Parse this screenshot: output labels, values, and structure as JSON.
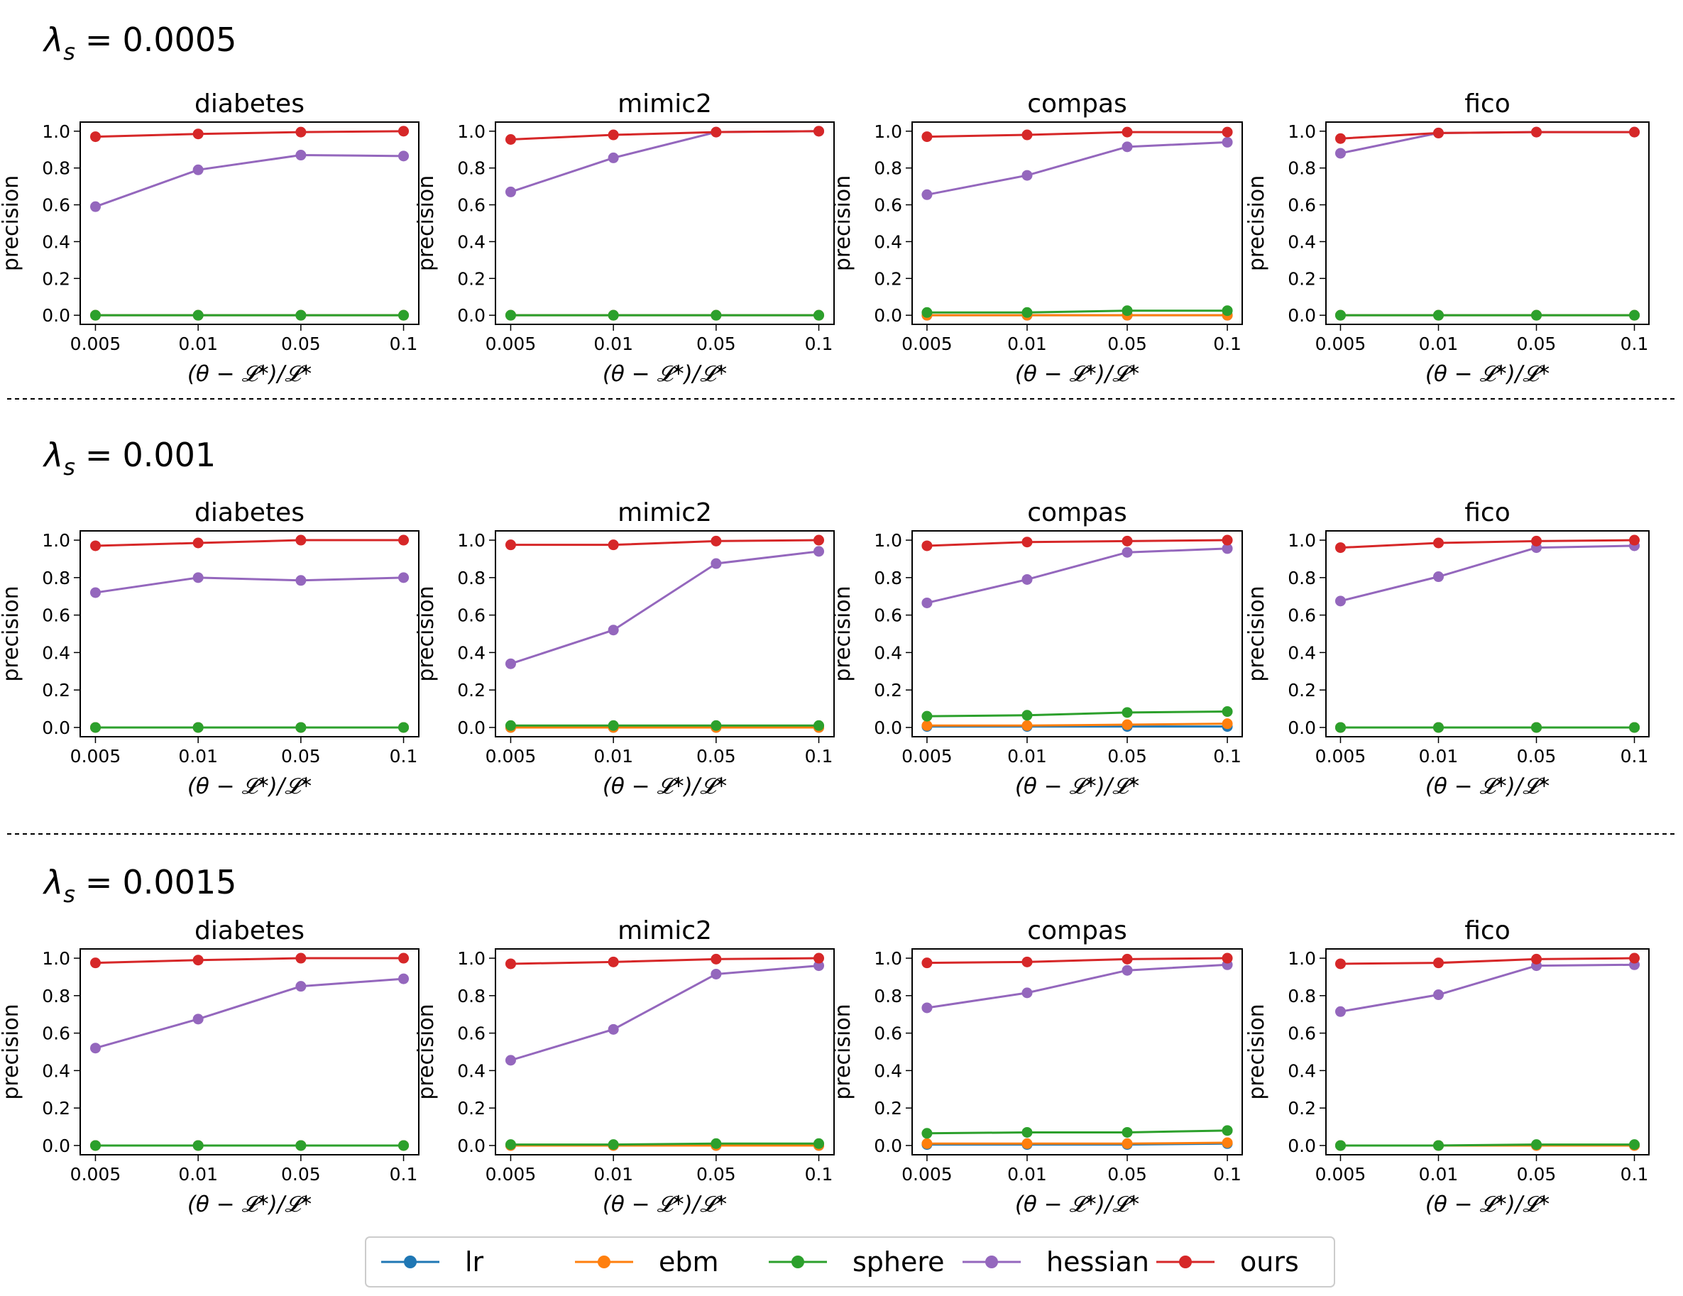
{
  "figure": {
    "xlabel": "(θ − 𝓛*)/𝓛*",
    "ylabel": "precision",
    "lambda_symbol": "λ",
    "lambda_sub": "s",
    "lambda_eq": "=",
    "rows": [
      {
        "lambda_value": "0.0005"
      },
      {
        "lambda_value": "0.001"
      },
      {
        "lambda_value": "0.0015"
      }
    ]
  },
  "legend": {
    "entries": [
      {
        "name": "lr",
        "color": "#1f77b4"
      },
      {
        "name": "ebm",
        "color": "#ff7f0e"
      },
      {
        "name": "sphere",
        "color": "#2ca02c"
      },
      {
        "name": "hessian",
        "color": "#9467bd"
      },
      {
        "name": "ours",
        "color": "#d62728"
      }
    ]
  },
  "chart_data": [
    {
      "type": "line",
      "title": "diabetes",
      "row": 0,
      "col": 0,
      "categories": [
        "0.005",
        "0.01",
        "0.05",
        "0.1"
      ],
      "xlabel": "(θ − 𝓛*)/𝓛*",
      "ylabel": "precision",
      "ylim": [
        0,
        1.0
      ],
      "yticks": [
        "0.0",
        "0.2",
        "0.4",
        "0.6",
        "0.8",
        "1.0"
      ],
      "series": [
        {
          "name": "lr",
          "values": [
            0.0,
            0.0,
            0.0,
            0.0
          ]
        },
        {
          "name": "ebm",
          "values": [
            0.0,
            0.0,
            0.0,
            0.0
          ]
        },
        {
          "name": "sphere",
          "values": [
            0.0,
            0.0,
            0.0,
            0.0
          ]
        },
        {
          "name": "hessian",
          "values": [
            0.59,
            0.79,
            0.87,
            0.865
          ]
        },
        {
          "name": "ours",
          "values": [
            0.97,
            0.985,
            0.995,
            1.0
          ]
        }
      ]
    },
    {
      "type": "line",
      "title": "mimic2",
      "row": 0,
      "col": 1,
      "categories": [
        "0.005",
        "0.01",
        "0.05",
        "0.1"
      ],
      "xlabel": "(θ − 𝓛*)/𝓛*",
      "ylabel": "precision",
      "ylim": [
        0,
        1.0
      ],
      "yticks": [
        "0.0",
        "0.2",
        "0.4",
        "0.6",
        "0.8",
        "1.0"
      ],
      "series": [
        {
          "name": "lr",
          "values": [
            0.0,
            0.0,
            0.0,
            0.0
          ]
        },
        {
          "name": "ebm",
          "values": [
            0.0,
            0.0,
            0.0,
            0.0
          ]
        },
        {
          "name": "sphere",
          "values": [
            0.0,
            0.0,
            0.0,
            0.0
          ]
        },
        {
          "name": "hessian",
          "values": [
            0.67,
            0.855,
            0.995,
            1.0
          ]
        },
        {
          "name": "ours",
          "values": [
            0.955,
            0.98,
            0.995,
            1.0
          ]
        }
      ]
    },
    {
      "type": "line",
      "title": "compas",
      "row": 0,
      "col": 2,
      "categories": [
        "0.005",
        "0.01",
        "0.05",
        "0.1"
      ],
      "xlabel": "(θ − 𝓛*)/𝓛*",
      "ylabel": "precision",
      "ylim": [
        0,
        1.0
      ],
      "yticks": [
        "0.0",
        "0.2",
        "0.4",
        "0.6",
        "0.8",
        "1.0"
      ],
      "series": [
        {
          "name": "lr",
          "values": [
            0.0,
            0.0,
            0.0,
            0.0
          ]
        },
        {
          "name": "ebm",
          "values": [
            0.0,
            0.0,
            0.0,
            0.0
          ]
        },
        {
          "name": "sphere",
          "values": [
            0.015,
            0.015,
            0.025,
            0.025
          ]
        },
        {
          "name": "hessian",
          "values": [
            0.655,
            0.76,
            0.915,
            0.94
          ]
        },
        {
          "name": "ours",
          "values": [
            0.97,
            0.98,
            0.995,
            0.995
          ]
        }
      ]
    },
    {
      "type": "line",
      "title": "fico",
      "row": 0,
      "col": 3,
      "categories": [
        "0.005",
        "0.01",
        "0.05",
        "0.1"
      ],
      "xlabel": "(θ − 𝓛*)/𝓛*",
      "ylabel": "precision",
      "ylim": [
        0,
        1.0
      ],
      "yticks": [
        "0.0",
        "0.2",
        "0.4",
        "0.6",
        "0.8",
        "1.0"
      ],
      "series": [
        {
          "name": "lr",
          "values": [
            0.0,
            0.0,
            0.0,
            0.0
          ]
        },
        {
          "name": "ebm",
          "values": [
            0.0,
            0.0,
            0.0,
            0.0
          ]
        },
        {
          "name": "sphere",
          "values": [
            0.0,
            0.0,
            0.0,
            0.0
          ]
        },
        {
          "name": "hessian",
          "values": [
            0.88,
            0.99,
            0.995,
            0.995
          ]
        },
        {
          "name": "ours",
          "values": [
            0.96,
            0.99,
            0.995,
            0.995
          ]
        }
      ]
    },
    {
      "type": "line",
      "title": "diabetes",
      "row": 1,
      "col": 0,
      "categories": [
        "0.005",
        "0.01",
        "0.05",
        "0.1"
      ],
      "xlabel": "(θ − 𝓛*)/𝓛*",
      "ylabel": "precision",
      "ylim": [
        0,
        1.0
      ],
      "yticks": [
        "0.0",
        "0.2",
        "0.4",
        "0.6",
        "0.8",
        "1.0"
      ],
      "series": [
        {
          "name": "lr",
          "values": [
            0.0,
            0.0,
            0.0,
            0.0
          ]
        },
        {
          "name": "ebm",
          "values": [
            0.0,
            0.0,
            0.0,
            0.0
          ]
        },
        {
          "name": "sphere",
          "values": [
            0.0,
            0.0,
            0.0,
            0.0
          ]
        },
        {
          "name": "hessian",
          "values": [
            0.72,
            0.8,
            0.785,
            0.8
          ]
        },
        {
          "name": "ours",
          "values": [
            0.97,
            0.985,
            1.0,
            1.0
          ]
        }
      ]
    },
    {
      "type": "line",
      "title": "mimic2",
      "row": 1,
      "col": 1,
      "categories": [
        "0.005",
        "0.01",
        "0.05",
        "0.1"
      ],
      "xlabel": "(θ − 𝓛*)/𝓛*",
      "ylabel": "precision",
      "ylim": [
        0,
        1.0
      ],
      "yticks": [
        "0.0",
        "0.2",
        "0.4",
        "0.6",
        "0.8",
        "1.0"
      ],
      "series": [
        {
          "name": "lr",
          "values": [
            0.0,
            0.0,
            0.0,
            0.0
          ]
        },
        {
          "name": "ebm",
          "values": [
            0.0,
            0.0,
            0.0,
            0.0
          ]
        },
        {
          "name": "sphere",
          "values": [
            0.01,
            0.01,
            0.01,
            0.01
          ]
        },
        {
          "name": "hessian",
          "values": [
            0.34,
            0.52,
            0.875,
            0.94
          ]
        },
        {
          "name": "ours",
          "values": [
            0.975,
            0.975,
            0.995,
            1.0
          ]
        }
      ]
    },
    {
      "type": "line",
      "title": "compas",
      "row": 1,
      "col": 2,
      "categories": [
        "0.005",
        "0.01",
        "0.05",
        "0.1"
      ],
      "xlabel": "(θ − 𝓛*)/𝓛*",
      "ylabel": "precision",
      "ylim": [
        0,
        1.0
      ],
      "yticks": [
        "0.0",
        "0.2",
        "0.4",
        "0.6",
        "0.8",
        "1.0"
      ],
      "series": [
        {
          "name": "lr",
          "values": [
            0.005,
            0.005,
            0.005,
            0.005
          ]
        },
        {
          "name": "ebm",
          "values": [
            0.01,
            0.01,
            0.015,
            0.02
          ]
        },
        {
          "name": "sphere",
          "values": [
            0.06,
            0.065,
            0.08,
            0.085
          ]
        },
        {
          "name": "hessian",
          "values": [
            0.665,
            0.79,
            0.935,
            0.955
          ]
        },
        {
          "name": "ours",
          "values": [
            0.97,
            0.99,
            0.995,
            1.0
          ]
        }
      ]
    },
    {
      "type": "line",
      "title": "fico",
      "row": 1,
      "col": 3,
      "categories": [
        "0.005",
        "0.01",
        "0.05",
        "0.1"
      ],
      "xlabel": "(θ − 𝓛*)/𝓛*",
      "ylabel": "precision",
      "ylim": [
        0,
        1.0
      ],
      "yticks": [
        "0.0",
        "0.2",
        "0.4",
        "0.6",
        "0.8",
        "1.0"
      ],
      "series": [
        {
          "name": "lr",
          "values": [
            0.0,
            0.0,
            0.0,
            0.0
          ]
        },
        {
          "name": "ebm",
          "values": [
            0.0,
            0.0,
            0.0,
            0.0
          ]
        },
        {
          "name": "sphere",
          "values": [
            0.0,
            0.0,
            0.0,
            0.0
          ]
        },
        {
          "name": "hessian",
          "values": [
            0.675,
            0.805,
            0.96,
            0.97
          ]
        },
        {
          "name": "ours",
          "values": [
            0.96,
            0.985,
            0.995,
            1.0
          ]
        }
      ]
    },
    {
      "type": "line",
      "title": "diabetes",
      "row": 2,
      "col": 0,
      "categories": [
        "0.005",
        "0.01",
        "0.05",
        "0.1"
      ],
      "xlabel": "(θ − 𝓛*)/𝓛*",
      "ylabel": "precision",
      "ylim": [
        0,
        1.0
      ],
      "yticks": [
        "0.0",
        "0.2",
        "0.4",
        "0.6",
        "0.8",
        "1.0"
      ],
      "series": [
        {
          "name": "lr",
          "values": [
            0.0,
            0.0,
            0.0,
            0.0
          ]
        },
        {
          "name": "ebm",
          "values": [
            0.0,
            0.0,
            0.0,
            0.0
          ]
        },
        {
          "name": "sphere",
          "values": [
            0.0,
            0.0,
            0.0,
            0.0
          ]
        },
        {
          "name": "hessian",
          "values": [
            0.52,
            0.675,
            0.85,
            0.89
          ]
        },
        {
          "name": "ours",
          "values": [
            0.975,
            0.99,
            1.0,
            1.0
          ]
        }
      ]
    },
    {
      "type": "line",
      "title": "mimic2",
      "row": 2,
      "col": 1,
      "categories": [
        "0.005",
        "0.01",
        "0.05",
        "0.1"
      ],
      "xlabel": "(θ − 𝓛*)/𝓛*",
      "ylabel": "precision",
      "ylim": [
        0,
        1.0
      ],
      "yticks": [
        "0.0",
        "0.2",
        "0.4",
        "0.6",
        "0.8",
        "1.0"
      ],
      "series": [
        {
          "name": "lr",
          "values": [
            0.0,
            0.0,
            0.0,
            0.0
          ]
        },
        {
          "name": "ebm",
          "values": [
            0.0,
            0.0,
            0.0,
            0.0
          ]
        },
        {
          "name": "sphere",
          "values": [
            0.005,
            0.005,
            0.01,
            0.01
          ]
        },
        {
          "name": "hessian",
          "values": [
            0.455,
            0.62,
            0.915,
            0.96
          ]
        },
        {
          "name": "ours",
          "values": [
            0.97,
            0.98,
            0.995,
            1.0
          ]
        }
      ]
    },
    {
      "type": "line",
      "title": "compas",
      "row": 2,
      "col": 2,
      "categories": [
        "0.005",
        "0.01",
        "0.05",
        "0.1"
      ],
      "xlabel": "(θ − 𝓛*)/𝓛*",
      "ylabel": "precision",
      "ylim": [
        0,
        1.0
      ],
      "yticks": [
        "0.0",
        "0.2",
        "0.4",
        "0.6",
        "0.8",
        "1.0"
      ],
      "series": [
        {
          "name": "lr",
          "values": [
            0.005,
            0.005,
            0.005,
            0.01
          ]
        },
        {
          "name": "ebm",
          "values": [
            0.01,
            0.01,
            0.01,
            0.015
          ]
        },
        {
          "name": "sphere",
          "values": [
            0.065,
            0.07,
            0.07,
            0.08
          ]
        },
        {
          "name": "hessian",
          "values": [
            0.735,
            0.815,
            0.935,
            0.965
          ]
        },
        {
          "name": "ours",
          "values": [
            0.975,
            0.98,
            0.995,
            1.0
          ]
        }
      ]
    },
    {
      "type": "line",
      "title": "fico",
      "row": 2,
      "col": 3,
      "categories": [
        "0.005",
        "0.01",
        "0.05",
        "0.1"
      ],
      "xlabel": "(θ − 𝓛*)/𝓛*",
      "ylabel": "precision",
      "ylim": [
        0,
        1.0
      ],
      "yticks": [
        "0.0",
        "0.2",
        "0.4",
        "0.6",
        "0.8",
        "1.0"
      ],
      "series": [
        {
          "name": "lr",
          "values": [
            0.0,
            0.0,
            0.0,
            0.0
          ]
        },
        {
          "name": "ebm",
          "values": [
            0.0,
            0.0,
            0.0,
            0.0
          ]
        },
        {
          "name": "sphere",
          "values": [
            0.0,
            0.0,
            0.005,
            0.005
          ]
        },
        {
          "name": "hessian",
          "values": [
            0.715,
            0.805,
            0.96,
            0.965
          ]
        },
        {
          "name": "ours",
          "values": [
            0.97,
            0.975,
            0.995,
            1.0
          ]
        }
      ]
    }
  ]
}
